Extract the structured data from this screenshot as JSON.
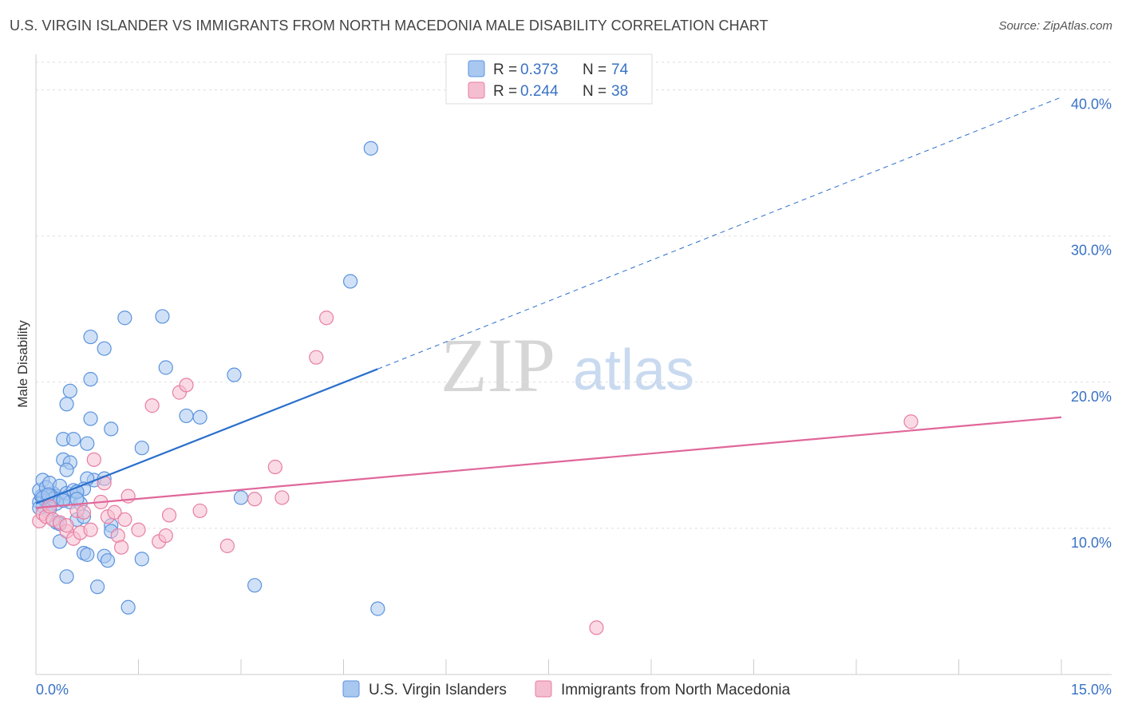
{
  "header": {
    "title": "U.S. VIRGIN ISLANDER VS IMMIGRANTS FROM NORTH MACEDONIA MALE DISABILITY CORRELATION CHART",
    "source": "Source: ZipAtlas.com"
  },
  "watermark": {
    "zip": "ZIP",
    "atlas": "atlas"
  },
  "colors": {
    "blue": "#5b93de",
    "blue_fill": "#a9c8f0",
    "blue_line": "#2a6fcc",
    "pink": "#e87ea1",
    "pink_fill": "#f5bdd0",
    "pink_line": "#e0679a",
    "grid": "#dddddd",
    "tick": "#3a72c4"
  },
  "legend": {
    "rows": [
      {
        "r_label": "R =",
        "r_value": "0.373",
        "n_label": "N =",
        "n_value": "74"
      },
      {
        "r_label": "R =",
        "r_value": "0.244",
        "n_label": "N =",
        "n_value": "38"
      }
    ]
  },
  "chart_data": {
    "type": "scatter",
    "title": "U.S. VIRGIN ISLANDER VS IMMIGRANTS FROM NORTH MACEDONIA MALE DISABILITY CORRELATION CHART",
    "xlabel": "",
    "ylabel": "Male Disability",
    "xlim": [
      0,
      15
    ],
    "ylim": [
      0,
      42
    ],
    "x_tick_labels": [
      "0.0%",
      "15.0%"
    ],
    "y_ticks": [
      {
        "value": 10,
        "label": "10.0%"
      },
      {
        "value": 20,
        "label": "20.0%"
      },
      {
        "value": 30,
        "label": "30.0%"
      },
      {
        "value": 40,
        "label": "40.0%"
      }
    ],
    "grid": true,
    "series": [
      {
        "name": "U.S. Virgin Islanders",
        "r": 0.373,
        "n": 74,
        "trend": {
          "x0": 0,
          "y0": 11.7,
          "x1": 5.0,
          "y1": 20.9,
          "dashed_to_x": 15.0,
          "dashed_to_y": 39.5
        },
        "points": [
          [
            0.05,
            11.8
          ],
          [
            0.08,
            12.2
          ],
          [
            0.1,
            11.5
          ],
          [
            0.12,
            12.0
          ],
          [
            0.15,
            12.3
          ],
          [
            0.18,
            11.6
          ],
          [
            0.2,
            12.1
          ],
          [
            0.22,
            11.9
          ],
          [
            0.25,
            12.4
          ],
          [
            0.05,
            12.6
          ],
          [
            0.1,
            13.3
          ],
          [
            0.15,
            12.8
          ],
          [
            0.2,
            13.1
          ],
          [
            0.3,
            12.2
          ],
          [
            0.3,
            11.7
          ],
          [
            0.35,
            12.9
          ],
          [
            0.4,
            12.0
          ],
          [
            0.45,
            12.4
          ],
          [
            0.5,
            11.8
          ],
          [
            0.55,
            12.6
          ],
          [
            0.6,
            12.5
          ],
          [
            0.65,
            11.7
          ],
          [
            0.2,
            11.3
          ],
          [
            0.3,
            10.4
          ],
          [
            0.35,
            10.3
          ],
          [
            0.6,
            10.6
          ],
          [
            0.7,
            10.8
          ],
          [
            0.4,
            14.7
          ],
          [
            0.5,
            14.5
          ],
          [
            0.45,
            14.0
          ],
          [
            0.4,
            16.1
          ],
          [
            0.55,
            16.1
          ],
          [
            0.75,
            15.8
          ],
          [
            0.85,
            13.3
          ],
          [
            1.0,
            13.4
          ],
          [
            0.75,
            13.4
          ],
          [
            0.7,
            12.7
          ],
          [
            0.5,
            19.4
          ],
          [
            0.45,
            18.5
          ],
          [
            0.8,
            17.5
          ],
          [
            1.1,
            16.8
          ],
          [
            0.8,
            20.2
          ],
          [
            0.8,
            23.1
          ],
          [
            1.0,
            22.3
          ],
          [
            1.3,
            24.4
          ],
          [
            1.85,
            24.5
          ],
          [
            1.9,
            21.0
          ],
          [
            1.55,
            15.5
          ],
          [
            2.2,
            17.7
          ],
          [
            2.4,
            17.6
          ],
          [
            2.9,
            20.5
          ],
          [
            3.0,
            12.1
          ],
          [
            0.35,
            9.1
          ],
          [
            0.7,
            8.3
          ],
          [
            0.75,
            8.2
          ],
          [
            1.0,
            8.1
          ],
          [
            1.05,
            7.8
          ],
          [
            1.1,
            10.2
          ],
          [
            1.1,
            9.8
          ],
          [
            1.55,
            7.9
          ],
          [
            0.45,
            6.7
          ],
          [
            0.9,
            6.0
          ],
          [
            1.35,
            4.6
          ],
          [
            3.2,
            6.1
          ],
          [
            5.0,
            4.5
          ],
          [
            4.9,
            36.0
          ],
          [
            4.6,
            26.9
          ],
          [
            0.6,
            12.5
          ],
          [
            0.25,
            12.0
          ],
          [
            0.1,
            12.1
          ],
          [
            0.05,
            11.4
          ],
          [
            0.18,
            12.3
          ],
          [
            0.6,
            12.0
          ],
          [
            0.4,
            11.9
          ]
        ]
      },
      {
        "name": "Immigrants from North Macedonia",
        "r": 0.244,
        "n": 38,
        "trend": {
          "x0": 0,
          "y0": 11.4,
          "x1": 15.0,
          "y1": 17.6
        },
        "points": [
          [
            0.05,
            10.5
          ],
          [
            0.1,
            11.0
          ],
          [
            0.15,
            10.8
          ],
          [
            0.2,
            11.5
          ],
          [
            0.25,
            10.6
          ],
          [
            0.35,
            10.4
          ],
          [
            0.45,
            9.8
          ],
          [
            0.55,
            9.3
          ],
          [
            0.6,
            11.2
          ],
          [
            0.65,
            9.7
          ],
          [
            0.7,
            11.1
          ],
          [
            0.8,
            9.9
          ],
          [
            0.85,
            14.7
          ],
          [
            0.95,
            11.8
          ],
          [
            1.0,
            13.1
          ],
          [
            1.05,
            10.8
          ],
          [
            1.15,
            11.1
          ],
          [
            1.2,
            9.5
          ],
          [
            1.25,
            8.7
          ],
          [
            1.3,
            10.6
          ],
          [
            1.35,
            12.2
          ],
          [
            1.5,
            9.9
          ],
          [
            1.7,
            18.4
          ],
          [
            1.8,
            9.1
          ],
          [
            1.9,
            9.5
          ],
          [
            1.95,
            10.9
          ],
          [
            2.1,
            19.3
          ],
          [
            2.2,
            19.8
          ],
          [
            2.4,
            11.2
          ],
          [
            2.8,
            8.8
          ],
          [
            3.2,
            12.0
          ],
          [
            3.5,
            14.2
          ],
          [
            3.6,
            12.1
          ],
          [
            4.1,
            21.7
          ],
          [
            4.25,
            24.4
          ],
          [
            8.2,
            3.2
          ],
          [
            12.8,
            17.3
          ],
          [
            0.45,
            10.2
          ]
        ]
      }
    ]
  }
}
